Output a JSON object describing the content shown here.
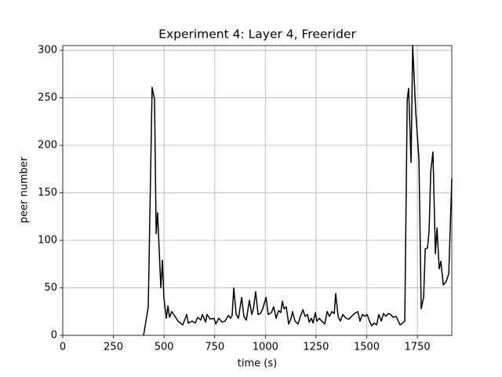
{
  "chart_data": {
    "type": "line",
    "title": "Experiment 4: Layer 4, Freerider",
    "x_label": "time (s)",
    "y_label": "peer number",
    "color": "#000000",
    "grid": true,
    "xlim": [
      0,
      1920
    ],
    "ylim": [
      0,
      305
    ],
    "xticks": [
      0,
      250,
      500,
      750,
      1000,
      1250,
      1500,
      1750
    ],
    "yticks": [
      0,
      50,
      100,
      150,
      200,
      250,
      300
    ],
    "x": [
      399,
      422,
      441,
      453,
      461,
      468,
      484,
      492,
      499,
      511,
      519,
      527,
      538,
      554,
      569,
      592,
      612,
      619,
      639,
      654,
      666,
      681,
      689,
      705,
      712,
      728,
      747,
      755,
      770,
      786,
      801,
      817,
      828,
      836,
      844,
      856,
      867,
      883,
      894,
      906,
      921,
      933,
      941,
      952,
      964,
      976,
      987,
      1003,
      1014,
      1030,
      1041,
      1053,
      1065,
      1076,
      1084,
      1092,
      1103,
      1115,
      1127,
      1134,
      1146,
      1161,
      1173,
      1185,
      1196,
      1208,
      1216,
      1227,
      1235,
      1247,
      1254,
      1266,
      1278,
      1293,
      1305,
      1316,
      1328,
      1340,
      1347,
      1359,
      1370,
      1382,
      1398,
      1413,
      1425,
      1440,
      1456,
      1467,
      1479,
      1491,
      1502,
      1514,
      1525,
      1537,
      1549,
      1560,
      1572,
      1583,
      1595,
      1607,
      1618,
      1630,
      1645,
      1665,
      1688,
      1700,
      1707,
      1719,
      1727,
      1742,
      1758,
      1769,
      1781,
      1789,
      1800,
      1808,
      1816,
      1827,
      1839,
      1847,
      1858,
      1866,
      1878,
      1893,
      1905,
      1920
    ],
    "values": [
      0,
      30,
      261,
      248,
      107,
      129,
      50,
      79,
      40,
      18,
      31,
      19,
      25,
      20,
      15,
      11,
      22,
      13,
      15,
      13,
      19,
      16,
      22,
      14,
      22,
      17,
      18,
      12,
      18,
      14,
      15,
      21,
      18,
      21,
      50,
      22,
      18,
      40,
      20,
      16,
      37,
      22,
      28,
      46,
      22,
      23,
      28,
      40,
      22,
      24,
      30,
      18,
      26,
      24,
      36,
      28,
      30,
      12,
      18,
      25,
      15,
      12,
      20,
      27,
      20,
      22,
      14,
      18,
      13,
      24,
      15,
      18,
      15,
      12,
      25,
      20,
      25,
      23,
      44,
      20,
      15,
      22,
      18,
      17,
      20,
      23,
      25,
      15,
      22,
      20,
      22,
      15,
      10,
      13,
      11,
      22,
      15,
      23,
      20,
      23,
      22,
      19,
      20,
      11,
      15,
      248,
      260,
      182,
      305,
      235,
      185,
      28,
      40,
      91,
      92,
      110,
      172,
      193,
      86,
      113,
      70,
      78,
      53,
      57,
      65,
      165
    ]
  }
}
